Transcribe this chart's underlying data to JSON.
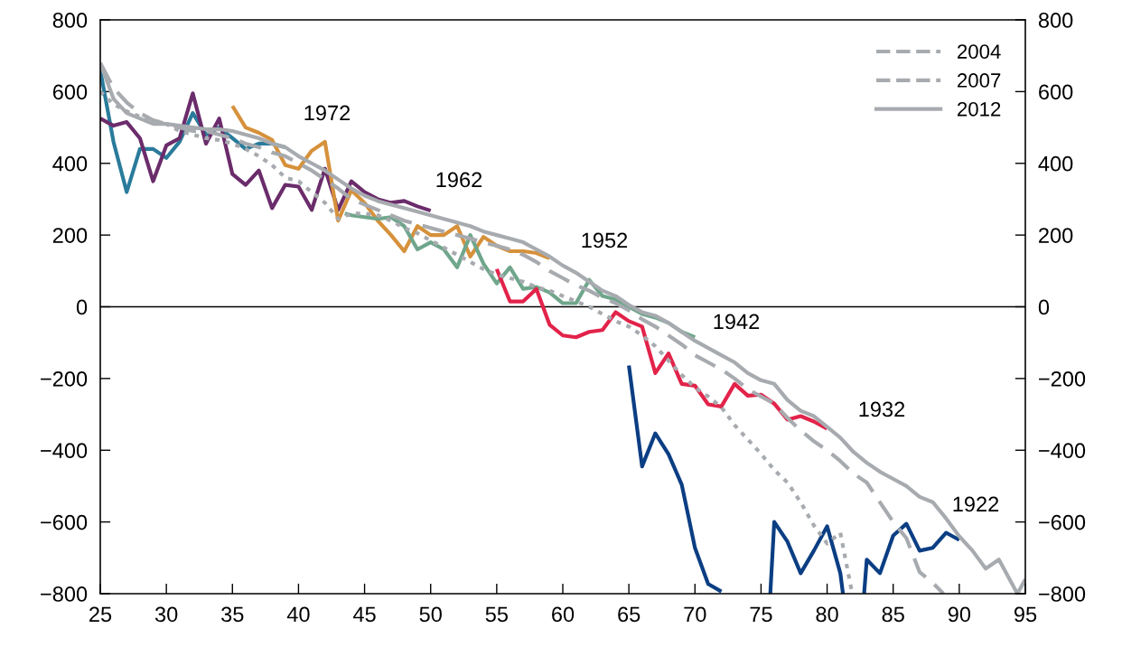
{
  "chart_data": {
    "type": "line",
    "xlim": [
      25,
      95
    ],
    "xticks": [
      25,
      30,
      35,
      40,
      45,
      50,
      55,
      60,
      65,
      70,
      75,
      80,
      85,
      90,
      95
    ],
    "ylim": [
      -800,
      800
    ],
    "yticks": [
      {
        "value": -800,
        "label": "−800"
      },
      {
        "value": -600,
        "label": "−600"
      },
      {
        "value": -400,
        "label": "−400"
      },
      {
        "value": -200,
        "label": "−200"
      },
      0,
      200,
      400,
      600,
      800
    ],
    "y2lim": [
      -800,
      800
    ],
    "y2ticks": [
      {
        "value": -800,
        "label": "−800"
      },
      {
        "value": -600,
        "label": "−600"
      },
      {
        "value": -400,
        "label": "−400"
      },
      {
        "value": -200,
        "label": "−200"
      },
      0,
      200,
      400,
      600,
      800
    ],
    "grid": false,
    "legend": "top right",
    "marker": "none",
    "ref_lines": [
      {
        "axis": "y",
        "value": 0,
        "color": "#000000",
        "line_style": "solid"
      }
    ],
    "annotations": [
      "1972",
      "1962",
      "1952",
      "1942",
      "1932",
      "1922"
    ],
    "series": [
      {
        "color": "#2a7b9b",
        "line_style": "solid",
        "x": [
          25,
          26,
          27,
          28,
          29,
          30,
          31,
          32,
          33,
          34,
          35,
          36,
          37,
          38,
          39
        ],
        "values": [
          660,
          460,
          320,
          440,
          440,
          415,
          460,
          540,
          480,
          500,
          470,
          440,
          455,
          455,
          445
        ]
      },
      {
        "color": "#6b2c6b",
        "line_style": "solid",
        "x": [
          25,
          26,
          27,
          28,
          29,
          30,
          31,
          32,
          33,
          34,
          35,
          36,
          37,
          38,
          39,
          40,
          41,
          42,
          43,
          44,
          45,
          46,
          47,
          48,
          49,
          50
        ],
        "values": [
          525,
          505,
          515,
          470,
          350,
          450,
          470,
          595,
          455,
          525,
          370,
          340,
          380,
          275,
          340,
          335,
          270,
          385,
          270,
          350,
          320,
          300,
          290,
          295,
          280,
          268
        ]
      },
      {
        "color": "#d6913b",
        "line_style": "solid",
        "x": [
          35,
          36,
          37,
          38,
          39,
          40,
          41,
          42,
          43,
          44,
          45,
          46,
          47,
          48,
          49,
          50,
          51,
          52,
          53,
          54,
          55,
          56,
          57,
          58,
          59
        ],
        "values": [
          560,
          500,
          485,
          465,
          395,
          385,
          435,
          460,
          240,
          325,
          290,
          240,
          200,
          155,
          225,
          200,
          200,
          225,
          140,
          195,
          170,
          155,
          155,
          150,
          135
        ]
      },
      {
        "color": "#6fa68c",
        "line_style": "solid",
        "x": [
          43.5,
          44,
          45,
          46,
          47,
          48,
          49,
          50,
          51,
          52,
          53,
          54,
          55,
          56,
          57,
          58,
          59,
          60,
          61,
          62,
          63,
          64,
          65,
          66,
          67,
          68,
          69,
          70
        ],
        "values": [
          260,
          255,
          250,
          245,
          250,
          225,
          160,
          180,
          160,
          110,
          200,
          120,
          65,
          110,
          50,
          55,
          40,
          10,
          10,
          75,
          30,
          20,
          0,
          -20,
          -30,
          -45,
          -70,
          -85
        ]
      },
      {
        "color": "#e2234a",
        "line_style": "solid",
        "x": [
          55,
          56,
          57,
          58,
          59,
          60,
          61,
          62,
          63,
          64,
          65,
          66,
          67,
          68,
          69,
          70,
          71,
          72,
          73,
          74,
          75,
          76,
          77,
          78,
          79,
          80
        ],
        "values": [
          105,
          15,
          15,
          50,
          -50,
          -80,
          -85,
          -70,
          -65,
          -15,
          -40,
          -55,
          -185,
          -130,
          -215,
          -220,
          -272,
          -278,
          -215,
          -248,
          -245,
          -270,
          -315,
          -305,
          -320,
          -340
        ]
      },
      {
        "color": "#0b3e83",
        "line_style": "solid",
        "x": [
          65,
          66,
          67,
          68,
          69,
          70,
          71,
          72,
          73,
          75.7,
          76,
          77,
          78,
          79,
          80,
          81,
          81.2,
          82,
          82.8,
          83,
          84,
          85,
          86,
          87,
          88,
          89,
          90
        ],
        "values": [
          -164,
          -445,
          -353,
          -411,
          -496,
          -672,
          -773,
          -794,
          null,
          -800,
          -600,
          -655,
          -743,
          -680,
          -612,
          -743,
          -800,
          null,
          -800,
          -705,
          -743,
          -638,
          -605,
          -680,
          -672,
          -630,
          -650
        ]
      },
      {
        "name": "2004",
        "color": "#a7abaf",
        "line_style": "dotted",
        "x": [
          25,
          26,
          27,
          28,
          29,
          30,
          31,
          32,
          33,
          34,
          35,
          36,
          37,
          38,
          39,
          40,
          41,
          42,
          43,
          44,
          45,
          46,
          47,
          48,
          49,
          50,
          51,
          52,
          53,
          54,
          55,
          56,
          57,
          58,
          59,
          60,
          61,
          62,
          63,
          64,
          65,
          66,
          67,
          68,
          69,
          70,
          71,
          72,
          73,
          74,
          75,
          76,
          77,
          78,
          79,
          80,
          81,
          81.9
        ],
        "values": [
          600,
          565,
          545,
          530,
          520,
          510,
          490,
          480,
          470,
          465,
          455,
          440,
          420,
          395,
          360,
          350,
          320,
          290,
          245,
          260,
          260,
          255,
          240,
          220,
          205,
          185,
          165,
          145,
          125,
          105,
          90,
          80,
          70,
          55,
          45,
          30,
          15,
          0,
          -20,
          -40,
          -55,
          -80,
          -110,
          -150,
          -190,
          -225,
          -250,
          -280,
          -330,
          -370,
          -410,
          -455,
          -490,
          -545,
          -610,
          -660,
          -630,
          -800
        ]
      },
      {
        "name": "2007",
        "color": "#a7abaf",
        "line_style": "dashed",
        "x": [
          25,
          26,
          27,
          28,
          29,
          30,
          31,
          32,
          33,
          34,
          35,
          36,
          37,
          38,
          39,
          40,
          41,
          42,
          43,
          44,
          45,
          46,
          47,
          48,
          49,
          50,
          51,
          52,
          53,
          54,
          55,
          56,
          57,
          58,
          59,
          60,
          61,
          62,
          63,
          64,
          65,
          66,
          67,
          68,
          69,
          70,
          71,
          72,
          73,
          74,
          75,
          76,
          77,
          78,
          79,
          80,
          81,
          82,
          83,
          84,
          85,
          86,
          87,
          88,
          88.8
        ],
        "values": [
          680,
          610,
          570,
          540,
          520,
          510,
          500,
          490,
          490,
          480,
          470,
          455,
          445,
          430,
          420,
          400,
          380,
          355,
          330,
          300,
          285,
          270,
          255,
          240,
          230,
          220,
          210,
          200,
          190,
          180,
          170,
          160,
          145,
          125,
          100,
          80,
          60,
          45,
          25,
          10,
          -10,
          -35,
          -55,
          -80,
          -105,
          -135,
          -155,
          -175,
          -200,
          -230,
          -250,
          -270,
          -310,
          -345,
          -375,
          -400,
          -430,
          -465,
          -490,
          -545,
          -600,
          -645,
          -740,
          -770,
          -800
        ]
      },
      {
        "name": "2012",
        "color": "#a7abaf",
        "line_style": "solid",
        "x": [
          25,
          26,
          27,
          28,
          29,
          30,
          31,
          32,
          33,
          34,
          35,
          36,
          37,
          38,
          39,
          40,
          41,
          42,
          43,
          44,
          45,
          46,
          47,
          48,
          49,
          50,
          51,
          52,
          53,
          54,
          55,
          56,
          57,
          58,
          59,
          60,
          61,
          62,
          63,
          64,
          65,
          66,
          67,
          68,
          69,
          70,
          71,
          72,
          73,
          74,
          75,
          76,
          77,
          78,
          79,
          80,
          81,
          82,
          83,
          84,
          85,
          86,
          87,
          88,
          89,
          90,
          91,
          92,
          93,
          94.4,
          95
        ],
        "values": [
          680,
          580,
          540,
          525,
          510,
          510,
          505,
          500,
          495,
          495,
          490,
          480,
          470,
          455,
          445,
          420,
          400,
          380,
          355,
          330,
          310,
          295,
          285,
          275,
          265,
          255,
          245,
          235,
          225,
          210,
          200,
          190,
          180,
          160,
          140,
          115,
          95,
          70,
          45,
          30,
          5,
          -15,
          -25,
          -45,
          -70,
          -95,
          -115,
          -135,
          -155,
          -185,
          -205,
          -215,
          -260,
          -290,
          -305,
          -335,
          -365,
          -405,
          -435,
          -460,
          -480,
          -500,
          -530,
          -545,
          -590,
          -640,
          -680,
          -730,
          -705,
          -800,
          -760
        ]
      }
    ]
  }
}
